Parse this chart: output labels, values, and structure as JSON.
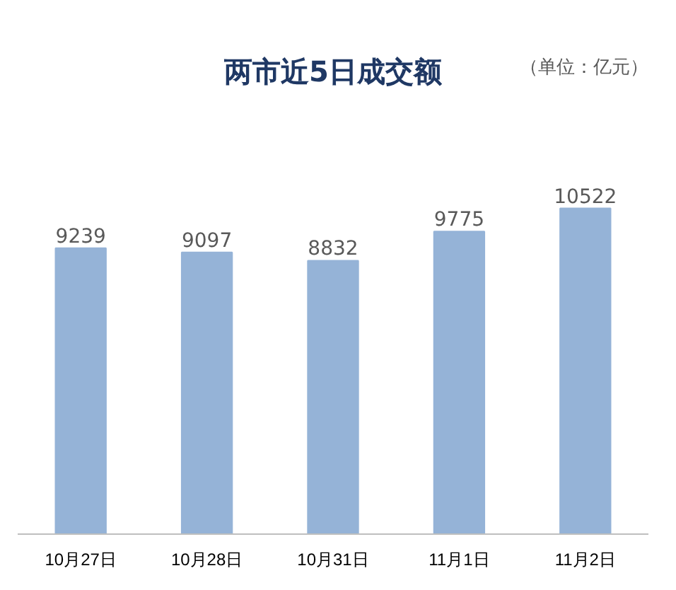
{
  "chart_data": {
    "type": "bar",
    "title": "两市近5日成交额",
    "annotations": [
      "（单位：亿元）"
    ],
    "categories": [
      "10月27日",
      "10月28日",
      "10月31日",
      "11月1日",
      "11月2日"
    ],
    "values": [
      9239,
      9097,
      8832,
      9775,
      10522
    ],
    "color": "#95b3d7",
    "data_labels": true,
    "grid": false
  }
}
